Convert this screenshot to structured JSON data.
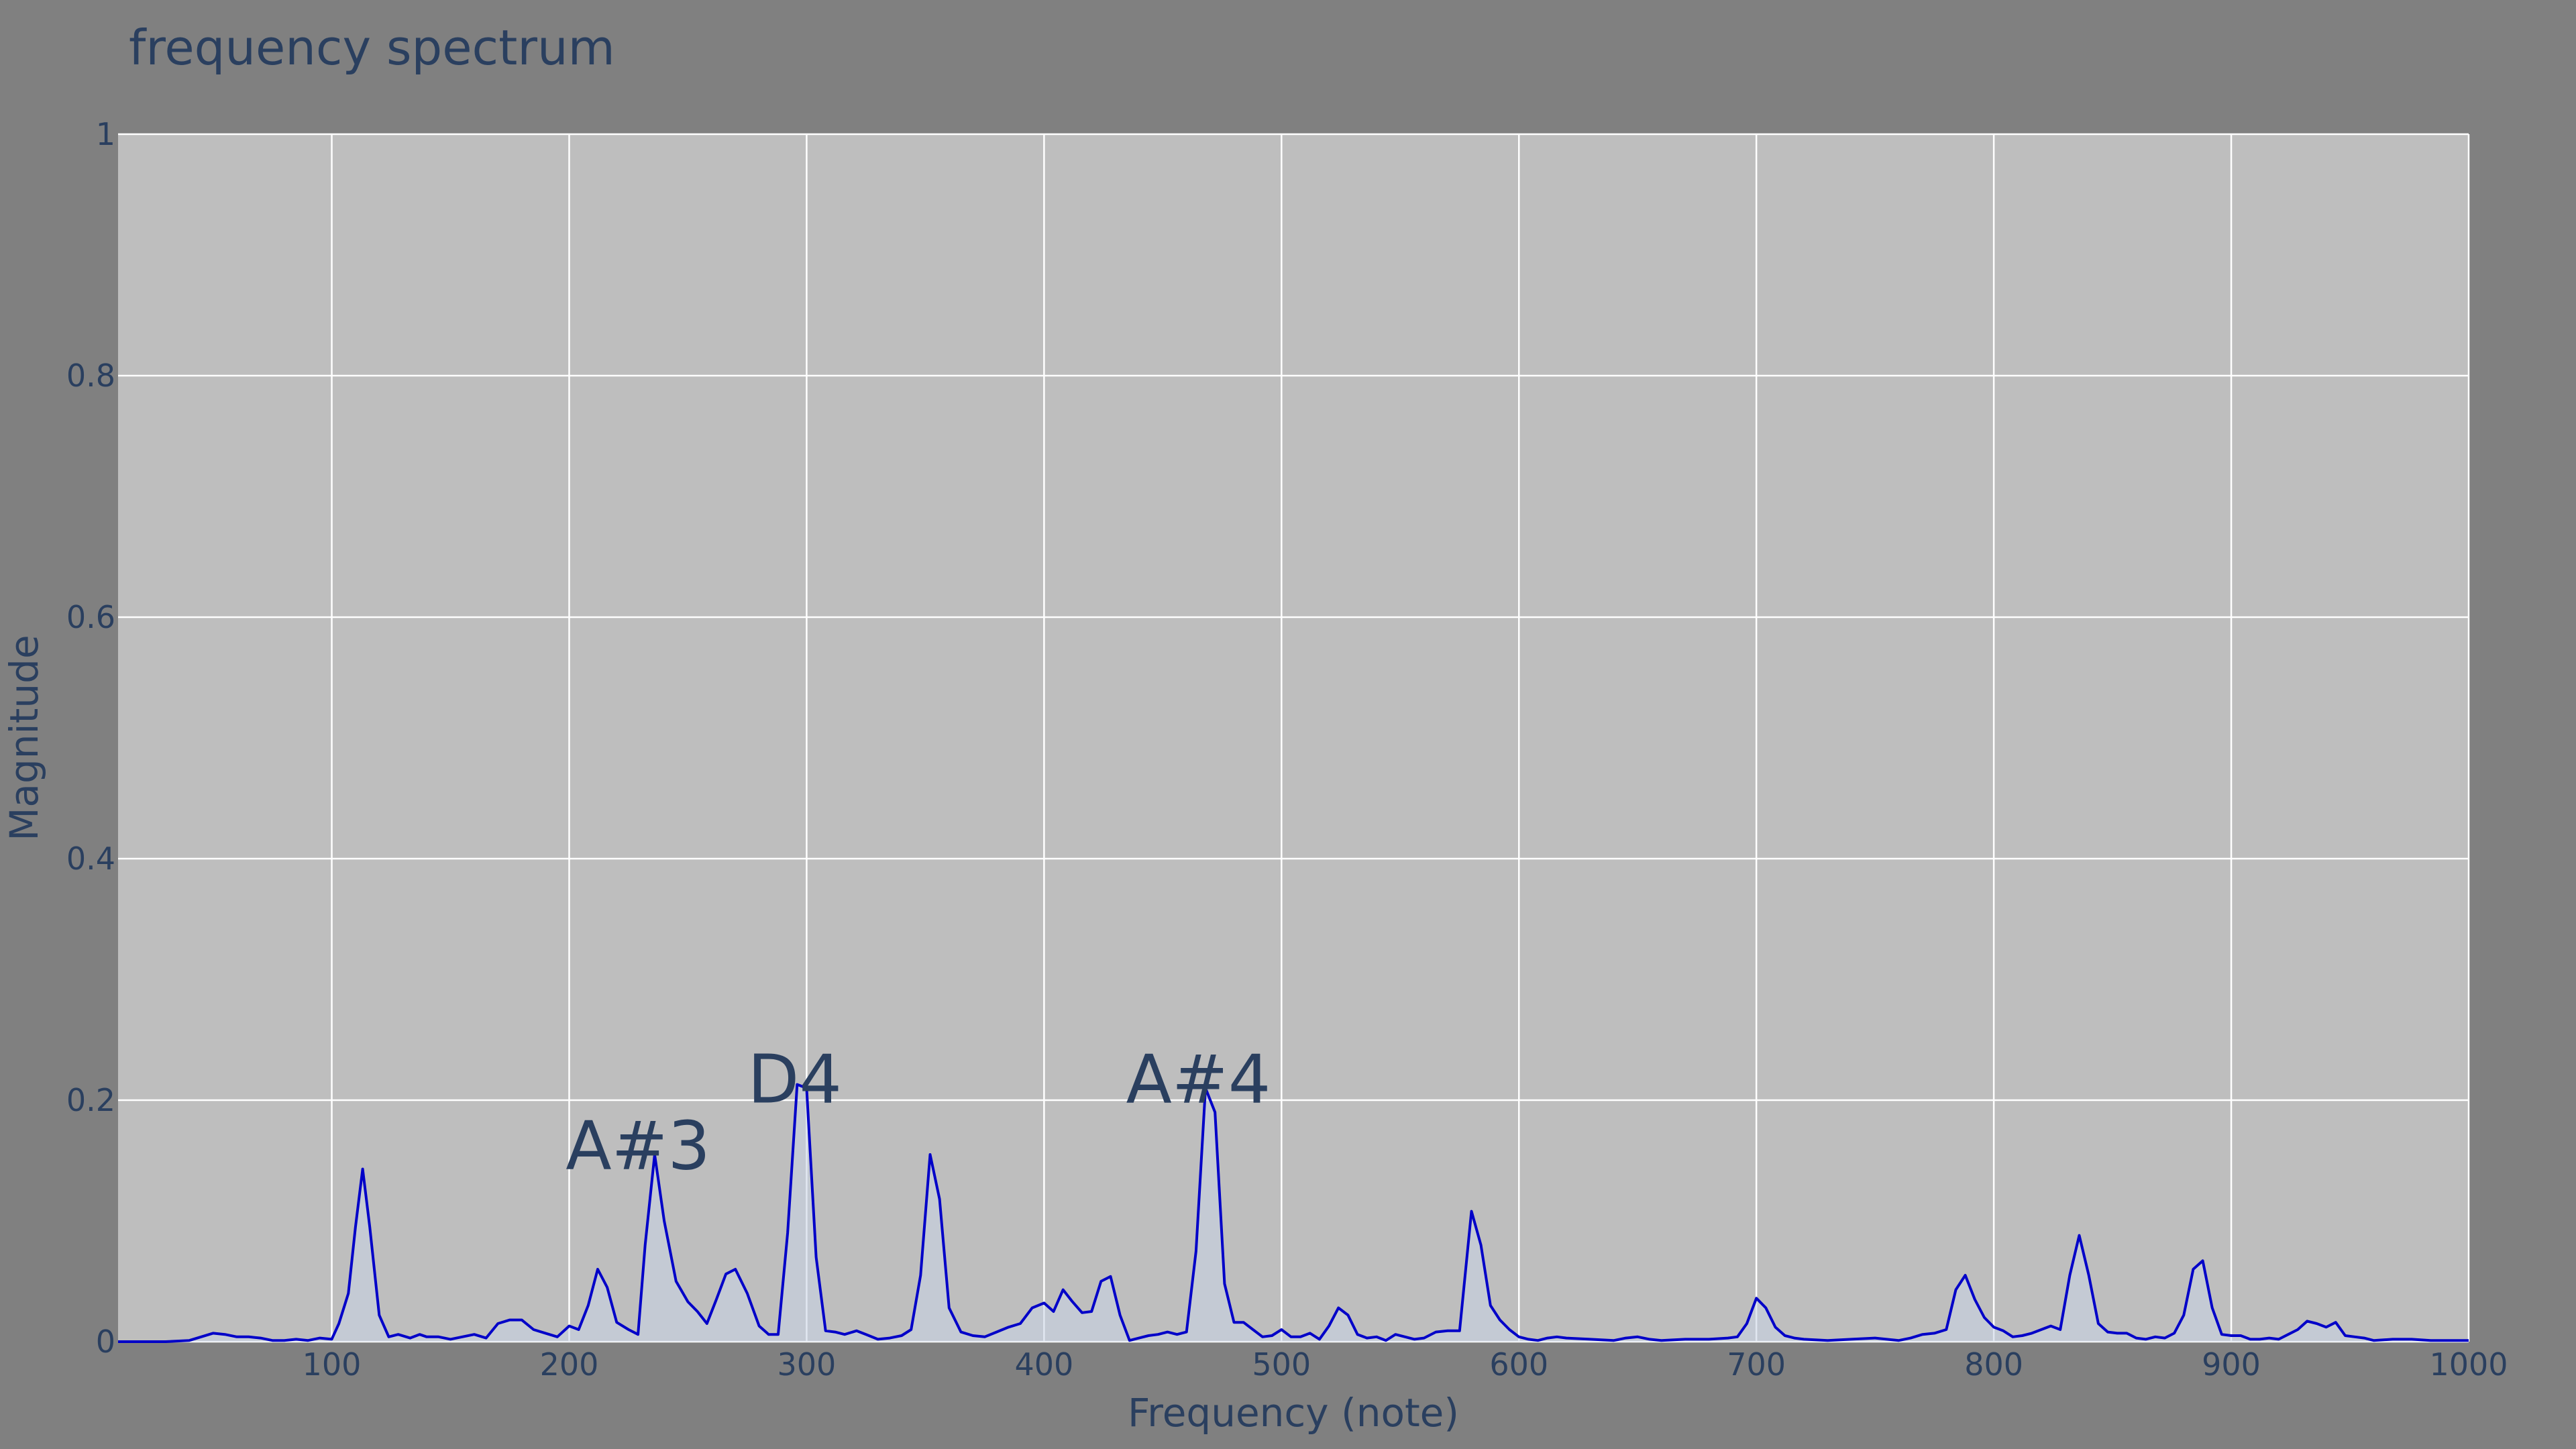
{
  "chart_data": {
    "type": "line",
    "title": "frequency spectrum",
    "xlabel": "Frequency (note)",
    "ylabel": "Magnitude",
    "xlim": [
      10,
      1000
    ],
    "ylim": [
      0,
      1
    ],
    "xticks": [
      100,
      200,
      300,
      400,
      500,
      600,
      700,
      800,
      900,
      1000
    ],
    "yticks": [
      0,
      0.2,
      0.4,
      0.6,
      0.8,
      1
    ],
    "ytick_labels": [
      "0",
      "0.2",
      "0.4",
      "0.6",
      "0.8",
      "1"
    ],
    "grid": true,
    "colors": {
      "line": "#0000c8",
      "fill": "#c8d4e6",
      "plot_bg": "#bebebe",
      "paper_bg": "#808080",
      "text": "#2a3f5f"
    },
    "series": [
      {
        "x": [
          10,
          30,
          40,
          45,
          50,
          55,
          60,
          65,
          70,
          75,
          80,
          85,
          90,
          95,
          100,
          103,
          107,
          110,
          113,
          116,
          120,
          124,
          128,
          133,
          137,
          140,
          145,
          150,
          155,
          160,
          165,
          170,
          175,
          180,
          185,
          190,
          195,
          200,
          204,
          208,
          212,
          216,
          220,
          225,
          229,
          232,
          236,
          240,
          245,
          250,
          254,
          258,
          262,
          266,
          270,
          275,
          280,
          284,
          288,
          292,
          296,
          300,
          304,
          308,
          312,
          316,
          321,
          325,
          330,
          335,
          340,
          344,
          348,
          352,
          356,
          360,
          365,
          370,
          375,
          380,
          385,
          390,
          395,
          400,
          404,
          408,
          412,
          416,
          420,
          424,
          428,
          432,
          436,
          440,
          444,
          448,
          452,
          456,
          460,
          464,
          468,
          472,
          476,
          480,
          484,
          488,
          492,
          496,
          500,
          504,
          508,
          512,
          516,
          520,
          524,
          528,
          532,
          536,
          540,
          544,
          548,
          552,
          556,
          560,
          565,
          570,
          575,
          580,
          584,
          588,
          592,
          596,
          600,
          604,
          608,
          612,
          616,
          620,
          630,
          640,
          645,
          650,
          655,
          660,
          670,
          680,
          688,
          692,
          696,
          700,
          704,
          708,
          712,
          716,
          720,
          730,
          740,
          750,
          760,
          765,
          770,
          775,
          780,
          784,
          788,
          792,
          796,
          800,
          804,
          808,
          812,
          816,
          820,
          824,
          828,
          832,
          836,
          840,
          844,
          848,
          852,
          856,
          860,
          864,
          868,
          872,
          876,
          880,
          884,
          888,
          892,
          896,
          900,
          904,
          908,
          912,
          916,
          920,
          924,
          928,
          932,
          936,
          940,
          944,
          948,
          952,
          956,
          960,
          968,
          976,
          984,
          992,
          1000
        ],
        "y": [
          0,
          0,
          0.001,
          0.004,
          0.007,
          0.006,
          0.004,
          0.004,
          0.003,
          0.001,
          0.001,
          0.002,
          0.001,
          0.003,
          0.002,
          0.015,
          0.04,
          0.095,
          0.143,
          0.095,
          0.022,
          0.004,
          0.006,
          0.003,
          0.006,
          0.004,
          0.004,
          0.002,
          0.004,
          0.006,
          0.003,
          0.015,
          0.018,
          0.018,
          0.01,
          0.007,
          0.004,
          0.013,
          0.01,
          0.03,
          0.06,
          0.045,
          0.016,
          0.01,
          0.006,
          0.08,
          0.155,
          0.1,
          0.05,
          0.033,
          0.025,
          0.015,
          0.035,
          0.056,
          0.06,
          0.04,
          0.013,
          0.006,
          0.006,
          0.09,
          0.213,
          0.21,
          0.07,
          0.009,
          0.008,
          0.006,
          0.009,
          0.006,
          0.002,
          0.003,
          0.005,
          0.01,
          0.055,
          0.155,
          0.118,
          0.028,
          0.008,
          0.005,
          0.004,
          0.008,
          0.012,
          0.015,
          0.028,
          0.032,
          0.025,
          0.043,
          0.033,
          0.024,
          0.025,
          0.05,
          0.054,
          0.022,
          0.001,
          0.003,
          0.005,
          0.006,
          0.008,
          0.006,
          0.008,
          0.075,
          0.21,
          0.19,
          0.048,
          0.016,
          0.016,
          0.01,
          0.004,
          0.005,
          0.01,
          0.004,
          0.004,
          0.007,
          0.002,
          0.013,
          0.028,
          0.022,
          0.006,
          0.003,
          0.004,
          0.001,
          0.006,
          0.004,
          0.002,
          0.003,
          0.008,
          0.009,
          0.009,
          0.108,
          0.08,
          0.03,
          0.018,
          0.01,
          0.004,
          0.002,
          0.001,
          0.003,
          0.004,
          0.003,
          0.002,
          0.001,
          0.003,
          0.004,
          0.002,
          0.001,
          0.002,
          0.002,
          0.003,
          0.004,
          0.015,
          0.036,
          0.028,
          0.012,
          0.005,
          0.003,
          0.002,
          0.001,
          0.002,
          0.003,
          0.001,
          0.003,
          0.006,
          0.007,
          0.01,
          0.043,
          0.055,
          0.035,
          0.02,
          0.012,
          0.009,
          0.004,
          0.005,
          0.007,
          0.01,
          0.013,
          0.01,
          0.055,
          0.088,
          0.055,
          0.015,
          0.008,
          0.007,
          0.007,
          0.003,
          0.002,
          0.004,
          0.003,
          0.007,
          0.022,
          0.06,
          0.067,
          0.028,
          0.006,
          0.005,
          0.005,
          0.002,
          0.002,
          0.003,
          0.002,
          0.006,
          0.01,
          0.017,
          0.015,
          0.012,
          0.016,
          0.005,
          0.004,
          0.003,
          0.001,
          0.002,
          0.002,
          0.001,
          0.001,
          0.001
        ]
      }
    ],
    "annotations": [
      {
        "text": "A#3",
        "x": 229,
        "y": 0.163
      },
      {
        "text": "D4",
        "x": 295,
        "y": 0.218
      },
      {
        "text": "A#4",
        "x": 465,
        "y": 0.218
      }
    ]
  }
}
